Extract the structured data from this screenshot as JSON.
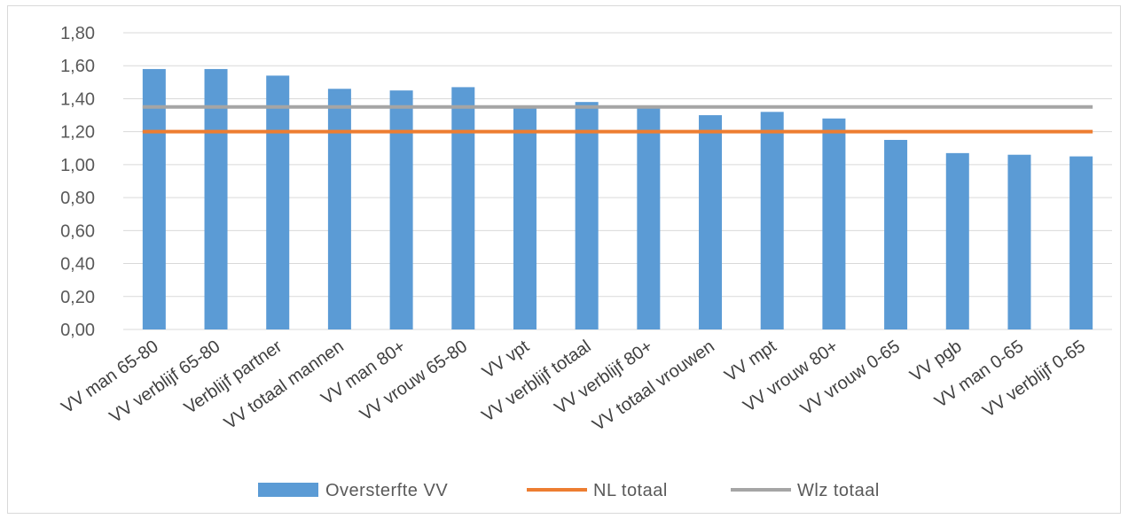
{
  "chart_data": {
    "type": "bar",
    "title": "",
    "xlabel": "",
    "ylabel": "",
    "ylim": [
      0,
      1.8
    ],
    "yticks": [
      "0,00",
      "0,20",
      "0,40",
      "0,60",
      "0,80",
      "1,00",
      "1,20",
      "1,40",
      "1,60",
      "1,80"
    ],
    "grid": true,
    "legend_position": "bottom",
    "categories": [
      "VV man 65-80",
      "VV verblijf 65-80",
      "Verblijf partner",
      "VV totaal mannen",
      "VV man 80+",
      "VV vrouw 65-80",
      "VV vpt",
      "VV verblijf totaal",
      "VV verblijf 80+",
      "VV totaal vrouwen",
      "VV mpt",
      "VV vrouw 80+",
      "VV vrouw 0-65",
      "VV pgb",
      "VV man 0-65",
      "VV verblijf 0-65"
    ],
    "series": [
      {
        "name": "Oversterfte VV",
        "kind": "bar",
        "color": "#5b9bd5",
        "values": [
          1.58,
          1.58,
          1.54,
          1.46,
          1.45,
          1.47,
          1.35,
          1.38,
          1.35,
          1.3,
          1.32,
          1.28,
          1.15,
          1.07,
          1.06,
          1.05
        ]
      },
      {
        "name": "NL totaal",
        "kind": "line",
        "color": "#ed7d31",
        "value": 1.2
      },
      {
        "name": "Wlz totaal",
        "kind": "line",
        "color": "#a5a5a5",
        "value": 1.35
      }
    ]
  }
}
